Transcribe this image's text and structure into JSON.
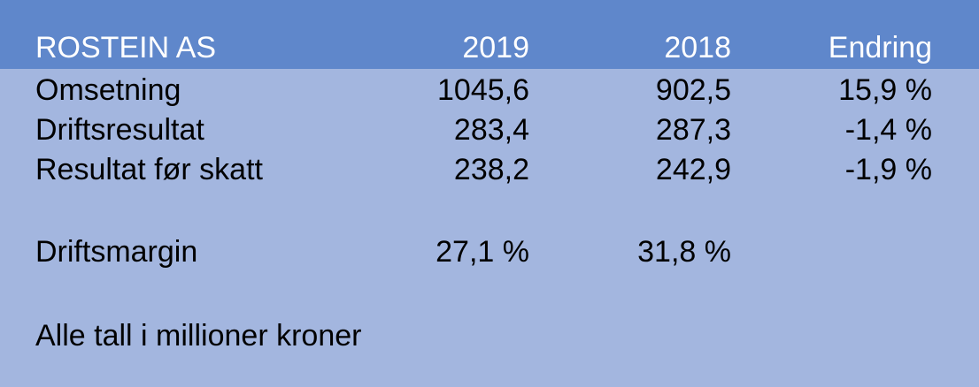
{
  "header": {
    "company": "ROSTEIN AS",
    "col_2019": "2019",
    "col_2018": "2018",
    "col_change": "Endring"
  },
  "rows": [
    {
      "label": "Omsetning",
      "v2019": "1045,6",
      "v2018": "902,5",
      "change": "15,9 %"
    },
    {
      "label": "Driftsresultat",
      "v2019": "283,4",
      "v2018": "287,3",
      "change": "-1,4 %"
    },
    {
      "label": "Resultat før skatt",
      "v2019": "238,2",
      "v2018": "242,9",
      "change": "-1,9 %"
    }
  ],
  "margin": {
    "label": "Driftsmargin",
    "v2019": "27,1 %",
    "v2018": "31,8 %"
  },
  "note": "Alle tall i millioner kroner",
  "colors": {
    "header_bg": "#5f87cb",
    "body_bg": "#a3b6df",
    "header_text": "#ffffff",
    "body_text": "#000000"
  }
}
